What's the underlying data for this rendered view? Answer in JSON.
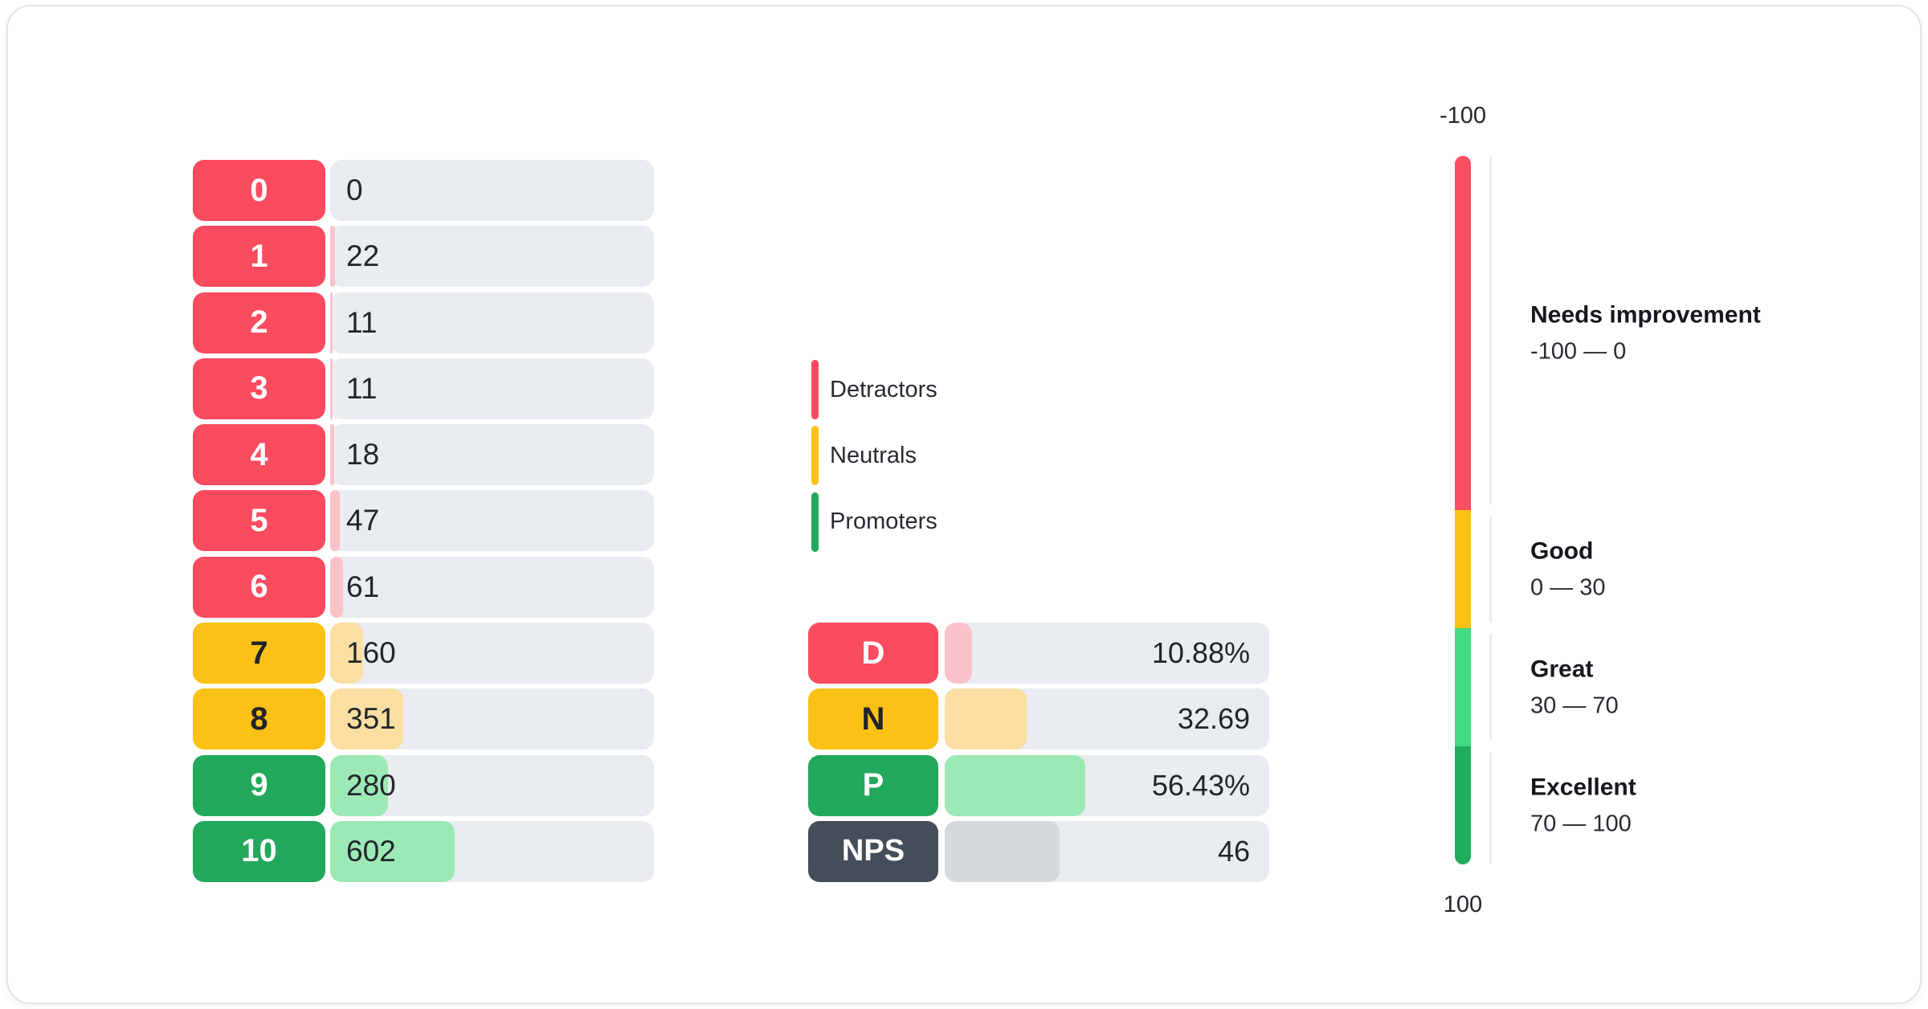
{
  "colors": {
    "detractor": "#FA4B5F",
    "detractor_light": "#FCC2C9",
    "neutral": "#FBC117",
    "neutral_light": "#FBDFA2",
    "promoter": "#22A85B",
    "promoter_light": "#9CE9B5",
    "nps": "#454D58",
    "nps_light": "#D5D9DD",
    "track": "#E9ECF0",
    "tick_line": "#EAEDF1",
    "gauge_red": "#FB4F63",
    "gauge_yellow": "#FBC117",
    "gauge_light_green": "#41DC82",
    "gauge_dark_green": "#21AD5E"
  },
  "legend": {
    "items": [
      {
        "label": "Detractors",
        "group": "detractor"
      },
      {
        "label": "Neutrals",
        "group": "neutral"
      },
      {
        "label": "Promoters",
        "group": "promoter"
      }
    ]
  },
  "chart_data": [
    {
      "type": "bar",
      "name": "score-distribution",
      "orientation": "horizontal",
      "categories": [
        "0",
        "1",
        "2",
        "3",
        "4",
        "5",
        "6",
        "7",
        "8",
        "9",
        "10"
      ],
      "values": [
        0,
        22,
        11,
        11,
        18,
        47,
        61,
        160,
        351,
        280,
        602
      ],
      "value_labels": [
        "0",
        "22",
        "11",
        "11",
        "18",
        "47",
        "61",
        "160",
        "351",
        "280",
        "602"
      ],
      "groups": [
        "detractor",
        "detractor",
        "detractor",
        "detractor",
        "detractor",
        "detractor",
        "detractor",
        "neutral",
        "neutral",
        "promoter",
        "promoter"
      ]
    },
    {
      "type": "bar",
      "name": "nps-summary",
      "orientation": "horizontal",
      "categories": [
        "D",
        "N",
        "P",
        "NPS"
      ],
      "values": [
        10.88,
        32.69,
        56.43,
        46
      ],
      "value_labels": [
        "10.88%",
        "32.69",
        "56.43%",
        "46"
      ],
      "groups": [
        "detractor",
        "neutral",
        "promoter",
        "nps"
      ],
      "axis_max": 130
    },
    {
      "type": "gauge",
      "name": "nps-scale",
      "min": -100,
      "max": 100,
      "top_label": "-100",
      "bottom_label": "100",
      "segments": [
        {
          "label": "Needs improvement",
          "range_label": "-100 — 0",
          "from": -100,
          "to": 0,
          "color_key": "gauge_red"
        },
        {
          "label": "Good",
          "range_label": "0 — 30",
          "from": 0,
          "to": 30,
          "color_key": "gauge_yellow"
        },
        {
          "label": "Great",
          "range_label": "30 — 70",
          "from": 30,
          "to": 70,
          "color_key": "gauge_light_green"
        },
        {
          "label": "Excellent",
          "range_label": "70 — 100",
          "from": 70,
          "to": 100,
          "color_key": "gauge_dark_green"
        }
      ]
    }
  ]
}
